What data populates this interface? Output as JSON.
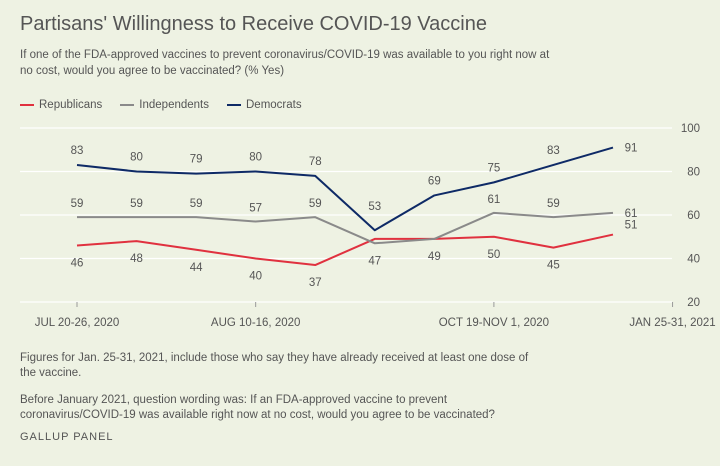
{
  "title": "Partisans' Willingness to Receive COVID-19 Vaccine",
  "subtitle": "If one of the FDA-approved vaccines to prevent coronavirus/COVID-19 was available to you right now at no cost, would you agree to be vaccinated? (% Yes)",
  "notes": [
    "Figures for Jan. 25-31, 2021, include those who say they have already received at least one dose of the vaccine.",
    "Before January 2021, question wording was: If an FDA-approved vaccine to prevent coronavirus/COVID-19 was available right now at no cost, would you agree to be vaccinated?"
  ],
  "source": "GALLUP PANEL",
  "colors": {
    "republicans": "#e0313f",
    "independents": "#8a8a8a",
    "democrats": "#0e2a66",
    "grid": "#ffffff",
    "text": "#555555"
  },
  "chart_data": {
    "type": "line",
    "x_tick_labels": [
      "JUL 20-26, 2020",
      "AUG 10-16, 2020",
      "OCT 19-NOV 1, 2020",
      "JAN 25-31, 2021"
    ],
    "x_tick_positions": [
      0,
      3,
      7,
      10
    ],
    "ylim": [
      20,
      100
    ],
    "yticks": [
      20,
      40,
      60,
      80,
      100
    ],
    "grid": true,
    "legend_position": "top-left",
    "series": [
      {
        "name": "Republicans",
        "color": "#e0313f",
        "values": [
          46,
          48,
          44,
          40,
          37,
          49,
          49,
          50,
          45,
          51
        ],
        "labels": [
          "46",
          "48",
          "44",
          "40",
          "37",
          "",
          "49",
          "50",
          "45",
          "51"
        ]
      },
      {
        "name": "Independents",
        "color": "#8a8a8a",
        "values": [
          59,
          59,
          59,
          57,
          59,
          47,
          49,
          61,
          59,
          61
        ],
        "labels": [
          "59",
          "59",
          "59",
          "57",
          "59",
          "47",
          "",
          "61",
          "59",
          "61"
        ]
      },
      {
        "name": "Democrats",
        "color": "#0e2a66",
        "values": [
          83,
          80,
          79,
          80,
          78,
          53,
          69,
          75,
          83,
          91
        ],
        "labels": [
          "83",
          "80",
          "79",
          "80",
          "78",
          "53",
          "69",
          "75",
          "83",
          "91"
        ]
      }
    ]
  }
}
